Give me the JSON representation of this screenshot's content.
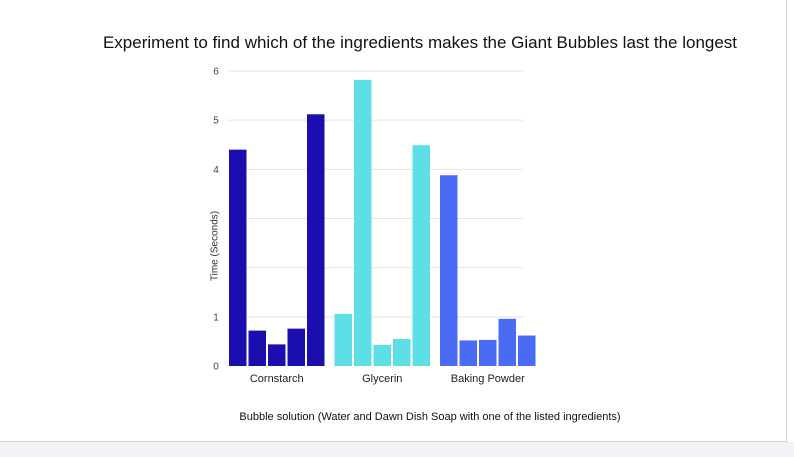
{
  "chart_data": {
    "type": "bar",
    "title": "Experiment to find which of the ingredients makes the Giant Bubbles last the longest",
    "xlabel": "Bubble solution (Water and Dawn Dish Soap with one of the listed ingredients)",
    "ylabel": "Time (Seconds)",
    "ylim": [
      0,
      6
    ],
    "yticks": [
      "0",
      "1",
      "4",
      "5",
      "6"
    ],
    "grid": true,
    "groups": [
      {
        "label": "Cornstarch",
        "color": "#1a0fae",
        "values": [
          4.4,
          0.72,
          0.44,
          0.76,
          5.12
        ]
      },
      {
        "label": "Glycerin",
        "color": "#5ce0e6",
        "values": [
          1.06,
          5.82,
          0.43,
          0.55,
          4.49
        ]
      },
      {
        "label": "Baking Powder",
        "color": "#4a6cf4",
        "values": [
          3.88,
          0.52,
          0.53,
          0.96,
          0.62
        ]
      }
    ]
  }
}
